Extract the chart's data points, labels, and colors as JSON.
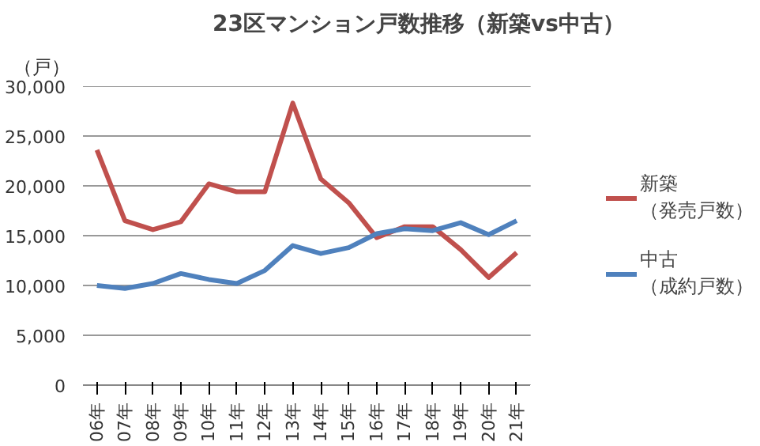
{
  "chart_data": {
    "type": "line",
    "title": "23区マンション戸数推移（新築vs中古）",
    "ylabel": "（戸）",
    "categories": [
      "06年",
      "07年",
      "08年",
      "09年",
      "10年",
      "11年",
      "12年",
      "13年",
      "14年",
      "15年",
      "16年",
      "17年",
      "18年",
      "19年",
      "20年",
      "21年"
    ],
    "series": [
      {
        "name": "新築（発売戸数）",
        "color": "#c0504d",
        "values": [
          23600,
          16500,
          15600,
          16400,
          20200,
          19400,
          19400,
          28300,
          20700,
          18300,
          14800,
          15900,
          15900,
          13600,
          10800,
          13300
        ]
      },
      {
        "name": "中古（成約戸数）",
        "color": "#4f81bd",
        "values": [
          10000,
          9700,
          10200,
          11200,
          10600,
          10200,
          11500,
          14000,
          13200,
          13800,
          15200,
          15700,
          15500,
          16300,
          15100,
          16500
        ]
      }
    ],
    "ylim": [
      0,
      30000
    ],
    "yticks": [
      {
        "value": 0,
        "label": "0"
      },
      {
        "value": 5000,
        "label": "5,000"
      },
      {
        "value": 10000,
        "label": "10,000"
      },
      {
        "value": 15000,
        "label": "15,000"
      },
      {
        "value": 20000,
        "label": "20,000"
      },
      {
        "value": 25000,
        "label": "25,000"
      },
      {
        "value": 30000,
        "label": "30,000"
      }
    ],
    "grid": "y",
    "legend": "right",
    "marker": "none",
    "line_style": "solid"
  }
}
